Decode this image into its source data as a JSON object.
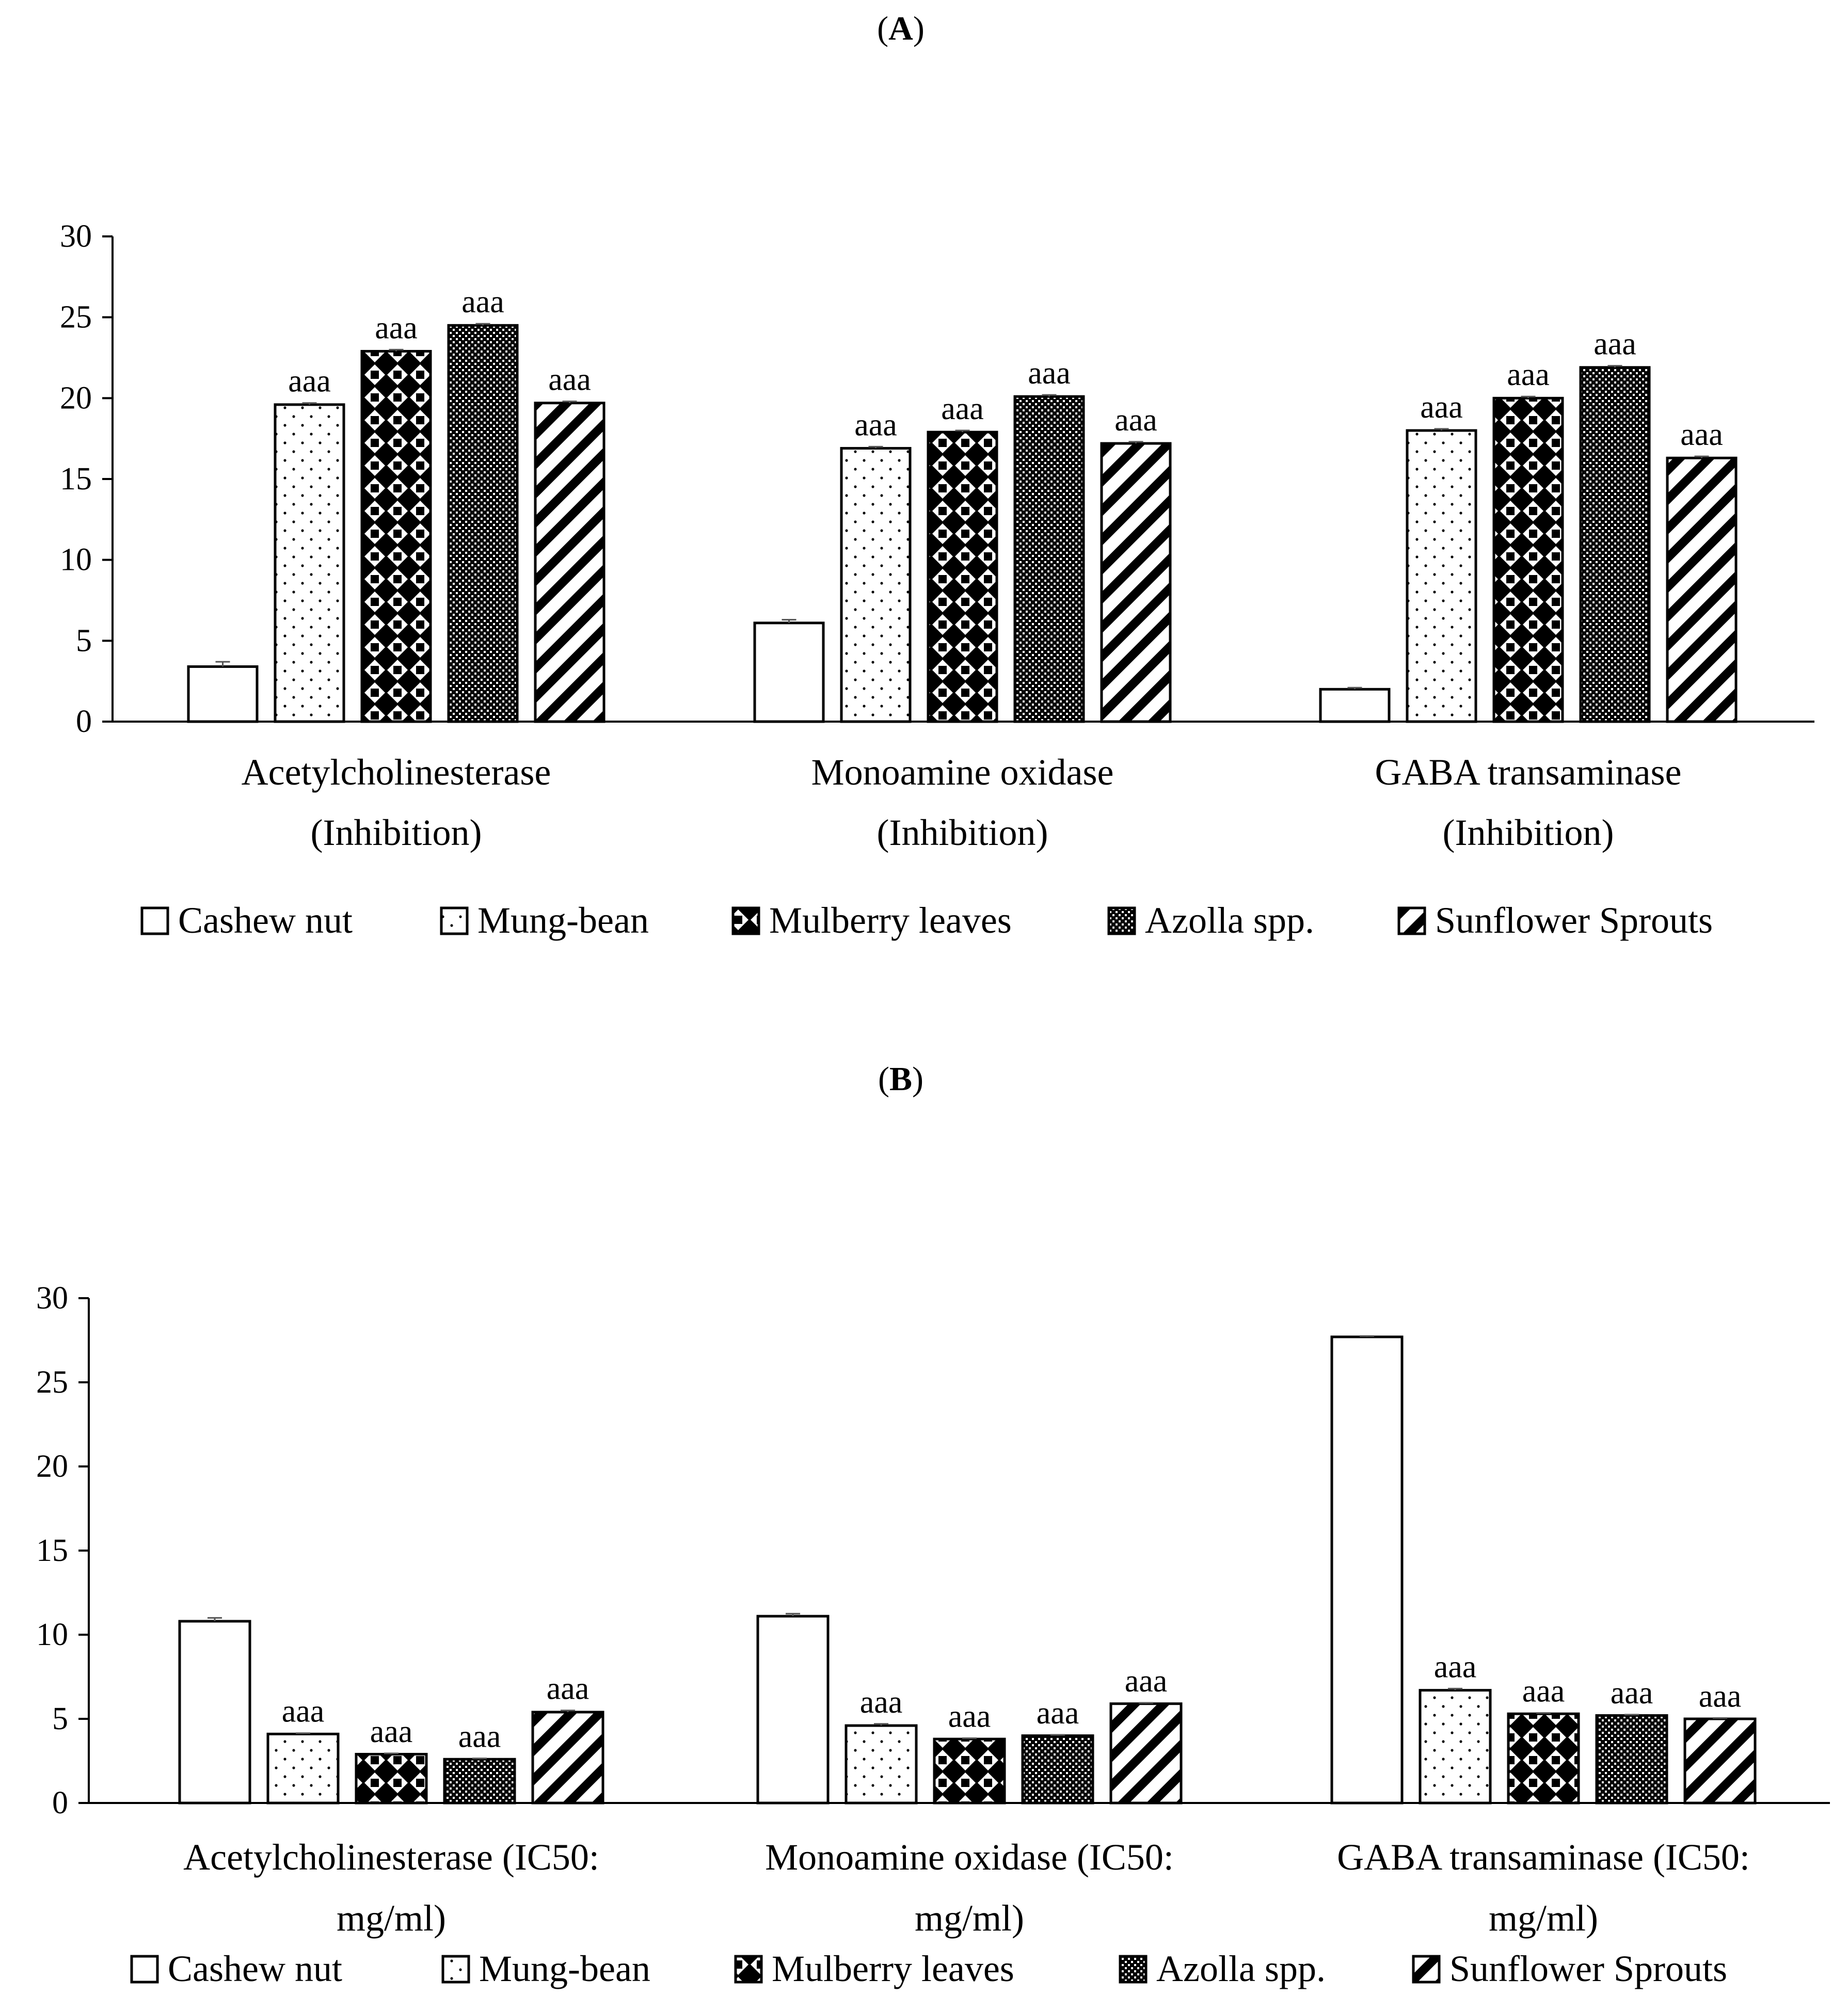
{
  "legend_marker": "□",
  "chart_data": [
    {
      "type": "bar",
      "panel_label": "A",
      "title_open": "(",
      "title_close": ")",
      "y_ticks": [
        "0",
        "5",
        "10",
        "15",
        "20",
        "25",
        "30"
      ],
      "ylim": [
        0,
        30
      ],
      "categories": [
        [
          "Acetylcholinesterase",
          "(Inhibition)"
        ],
        [
          "Monoamine oxidase",
          "(Inhibition)"
        ],
        [
          "GABA transaminase",
          "(Inhibition)"
        ]
      ],
      "series": [
        {
          "name": "Cashew nut",
          "pattern": "white",
          "values": [
            3.4,
            6.1,
            2.0
          ],
          "errors": [
            0.3,
            0.2,
            0.1
          ],
          "labels": [
            "",
            "",
            ""
          ]
        },
        {
          "name": "Mung-bean",
          "pattern": "dots",
          "values": [
            19.6,
            16.9,
            18.0
          ],
          "errors": [
            0.1,
            0.1,
            0.1
          ],
          "labels": [
            "aaa",
            "aaa",
            "aaa"
          ]
        },
        {
          "name": "Mulberry leaves",
          "pattern": "diamonds",
          "values": [
            22.9,
            17.9,
            20.0
          ],
          "errors": [
            0.1,
            0.1,
            0.1
          ],
          "labels": [
            "aaa",
            "aaa",
            "aaa"
          ]
        },
        {
          "name": "Azolla spp.",
          "pattern": "checker",
          "values": [
            24.5,
            20.1,
            21.9
          ],
          "errors": [
            0.1,
            0.1,
            0.1
          ],
          "labels": [
            "aaa",
            "aaa",
            "aaa"
          ]
        },
        {
          "name": "Sunflower Sprouts",
          "pattern": "stripes",
          "values": [
            19.7,
            17.2,
            16.3
          ],
          "errors": [
            0.1,
            0.1,
            0.1
          ],
          "labels": [
            "aaa",
            "aaa",
            "aaa"
          ]
        }
      ]
    },
    {
      "type": "bar",
      "panel_label": "B",
      "title_open": "(",
      "title_close": ")",
      "y_ticks": [
        "0",
        "5",
        "10",
        "15",
        "20",
        "25",
        "30"
      ],
      "ylim": [
        0,
        30
      ],
      "categories": [
        [
          "Acetylcholinesterase (IC50:",
          "mg/ml)"
        ],
        [
          "Monoamine oxidase (IC50:",
          "mg/ml)"
        ],
        [
          "GABA transaminase (IC50:",
          "mg/ml)"
        ]
      ],
      "series": [
        {
          "name": "Cashew nut",
          "pattern": "white",
          "values": [
            10.8,
            11.1,
            27.7
          ],
          "errors": [
            0.2,
            0.15,
            0.05
          ],
          "labels": [
            "",
            "",
            ""
          ]
        },
        {
          "name": "Mung-bean",
          "pattern": "dots",
          "values": [
            4.1,
            4.6,
            6.7
          ],
          "errors": [
            0.05,
            0.1,
            0.1
          ],
          "labels": [
            "aaa",
            "aaa",
            "aaa"
          ]
        },
        {
          "name": "Mulberry leaves",
          "pattern": "diamonds",
          "values": [
            2.9,
            3.8,
            5.3
          ],
          "errors": [
            0.05,
            0.05,
            0.05
          ],
          "labels": [
            "aaa",
            "aaa",
            "aaa"
          ]
        },
        {
          "name": "Azolla spp.",
          "pattern": "checker",
          "values": [
            2.6,
            4.0,
            5.2
          ],
          "errors": [
            0.05,
            0.05,
            0.05
          ],
          "labels": [
            "aaa",
            "aaa",
            "aaa"
          ]
        },
        {
          "name": "Sunflower Sprouts",
          "pattern": "stripes",
          "values": [
            5.4,
            5.9,
            5.0
          ],
          "errors": [
            0.1,
            0.05,
            0.05
          ],
          "labels": [
            "aaa",
            "aaa",
            "aaa"
          ]
        }
      ]
    }
  ]
}
